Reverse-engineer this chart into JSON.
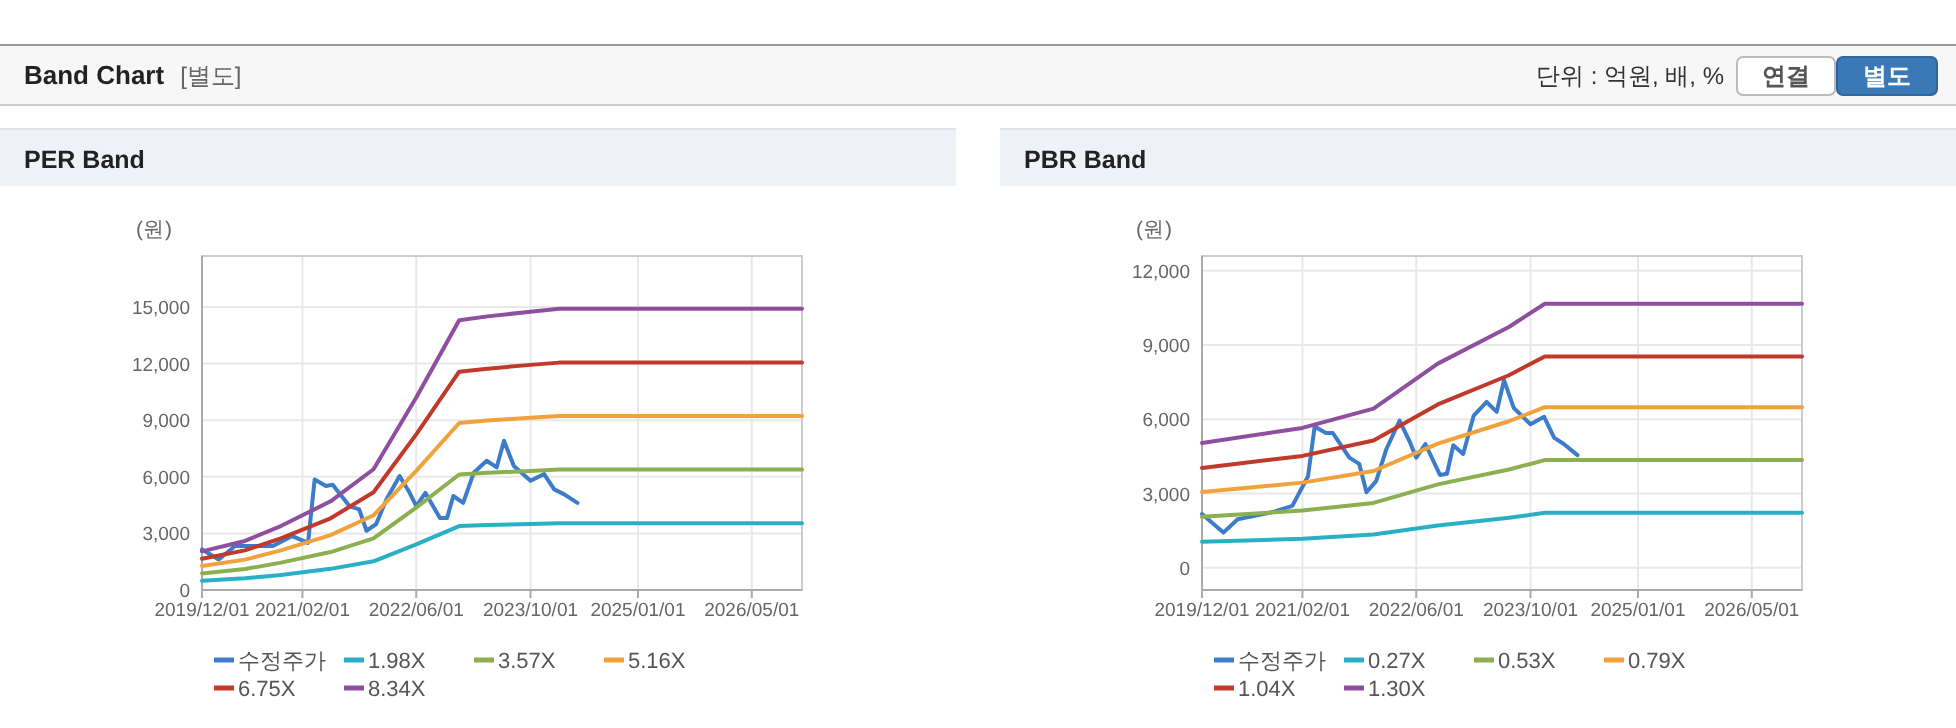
{
  "chart_data": [
    {
      "type": "other",
      "title": "Band Chart",
      "annotations": [
        "[별도]",
        "단위 : 억원, 배, %",
        "연결",
        "별도"
      ]
    },
    {
      "type": "line",
      "title": "PER Band",
      "ylabel": "(원)",
      "xlim": [
        "2019-12-01",
        "2026-12-01"
      ],
      "xticks": [
        {
          "value": "2019-12-01",
          "label": "2019/12/01"
        },
        {
          "value": "2021-02-01",
          "label": "2021/02/01"
        },
        {
          "value": "2022-06-01",
          "label": "2022/06/01"
        },
        {
          "value": "2023-10-01",
          "label": "2023/10/01"
        },
        {
          "value": "2025-01-01",
          "label": "2025/01/01"
        },
        {
          "value": "2026-05-01",
          "label": "2026/05/01"
        }
      ],
      "ylim": [
        0,
        17700
      ],
      "yticks": [
        {
          "value": 0,
          "label": "0"
        },
        {
          "value": 3000,
          "label": "3,000"
        },
        {
          "value": 6000,
          "label": "6,000"
        },
        {
          "value": 9000,
          "label": "9,000"
        },
        {
          "value": 12000,
          "label": "12,000"
        },
        {
          "value": 15000,
          "label": "15,000"
        }
      ],
      "grid": true,
      "legend": "bottom",
      "series": [
        {
          "name": "수정주가",
          "color": "#3d7cc9",
          "x": [
            "2019-12-01",
            "2020-02-10",
            "2020-04-20",
            "2020-09-28",
            "2020-12-20",
            "2021-02-25",
            "2021-03-25",
            "2021-05-12",
            "2021-06-10",
            "2021-08-20",
            "2021-10-01",
            "2021-11-01",
            "2021-12-12",
            "2022-01-25",
            "2022-03-22",
            "2022-05-04",
            "2022-06-01",
            "2022-07-10",
            "2022-09-10",
            "2022-10-10",
            "2022-11-06",
            "2022-12-18",
            "2023-02-01",
            "2023-03-28",
            "2023-05-10",
            "2023-06-10",
            "2023-07-22",
            "2023-10-01",
            "2023-11-28",
            "2024-01-10",
            "2024-02-20",
            "2024-04-18"
          ],
          "values": [
            2150,
            1620,
            2330,
            2330,
            2860,
            2500,
            5860,
            5510,
            5580,
            4450,
            4270,
            3140,
            3490,
            4800,
            6040,
            5150,
            4450,
            5150,
            3810,
            3810,
            4980,
            4620,
            6210,
            6850,
            6500,
            7910,
            6570,
            5790,
            6140,
            5330,
            5080,
            4620
          ]
        },
        {
          "name": "1.98X",
          "color": "#2ab0c5",
          "x": [
            "2019-12-01",
            "2020-06-01",
            "2020-11-01",
            "2021-06-01",
            "2021-12-01",
            "2022-06-01",
            "2022-12-01",
            "2023-04-01",
            "2023-10-01",
            "2024-02-01",
            "2026-12-01"
          ],
          "values": [
            490,
            620,
            800,
            1120,
            1520,
            2420,
            3390,
            3440,
            3500,
            3540,
            3540
          ]
        },
        {
          "name": "3.57X",
          "color": "#8cb050",
          "x": [
            "2019-12-01",
            "2020-06-01",
            "2020-11-01",
            "2021-06-01",
            "2021-12-01",
            "2022-06-01",
            "2022-12-01",
            "2023-04-01",
            "2023-10-01",
            "2024-02-01",
            "2026-12-01"
          ],
          "values": [
            880,
            1110,
            1450,
            2010,
            2740,
            4370,
            6120,
            6210,
            6310,
            6380,
            6380
          ]
        },
        {
          "name": "5.16X",
          "color": "#f2a23c",
          "x": [
            "2019-12-01",
            "2020-06-01",
            "2020-11-01",
            "2021-06-01",
            "2021-12-01",
            "2022-06-01",
            "2022-12-01",
            "2023-04-01",
            "2023-10-01",
            "2024-02-01",
            "2026-12-01"
          ],
          "values": [
            1270,
            1610,
            2100,
            2910,
            3960,
            6310,
            8850,
            8980,
            9130,
            9220,
            9220
          ]
        },
        {
          "name": "6.75X",
          "color": "#c0392b",
          "x": [
            "2019-12-01",
            "2020-06-01",
            "2020-11-01",
            "2021-06-01",
            "2021-12-01",
            "2022-06-01",
            "2022-12-01",
            "2023-04-01",
            "2023-10-01",
            "2024-02-01",
            "2026-12-01"
          ],
          "values": [
            1660,
            2100,
            2740,
            3800,
            5180,
            8250,
            11570,
            11730,
            11930,
            12050,
            12050
          ]
        },
        {
          "name": "8.34X",
          "color": "#8e4f9e",
          "x": [
            "2019-12-01",
            "2020-06-01",
            "2020-11-01",
            "2021-06-01",
            "2021-12-01",
            "2022-06-01",
            "2022-12-01",
            "2023-04-01",
            "2023-10-01",
            "2024-02-01",
            "2026-12-01"
          ],
          "values": [
            2050,
            2600,
            3390,
            4700,
            6400,
            10200,
            14300,
            14500,
            14750,
            14900,
            14900
          ]
        }
      ]
    },
    {
      "type": "line",
      "title": "PBR Band",
      "ylabel": "(원)",
      "xlim": [
        "2019-12-01",
        "2026-12-01"
      ],
      "xticks": [
        {
          "value": "2019-12-01",
          "label": "2019/12/01"
        },
        {
          "value": "2021-02-01",
          "label": "2021/02/01"
        },
        {
          "value": "2022-06-01",
          "label": "2022/06/01"
        },
        {
          "value": "2023-10-01",
          "label": "2023/10/01"
        },
        {
          "value": "2025-01-01",
          "label": "2025/01/01"
        },
        {
          "value": "2026-05-01",
          "label": "2026/05/01"
        }
      ],
      "ylim": [
        -900,
        12600
      ],
      "yticks": [
        {
          "value": 0,
          "label": "0"
        },
        {
          "value": 3000,
          "label": "3,000"
        },
        {
          "value": 6000,
          "label": "6,000"
        },
        {
          "value": 9000,
          "label": "9,000"
        },
        {
          "value": 12000,
          "label": "12,000"
        }
      ],
      "grid": true,
      "legend": "bottom",
      "series": [
        {
          "name": "수정주가",
          "color": "#3d7cc9",
          "x": [
            "2019-12-01",
            "2020-03-01",
            "2020-05-01",
            "2020-09-28",
            "2020-12-20",
            "2021-02-25",
            "2021-03-25",
            "2021-05-12",
            "2021-06-10",
            "2021-08-20",
            "2021-10-01",
            "2021-11-01",
            "2021-12-12",
            "2022-01-25",
            "2022-03-22",
            "2022-05-04",
            "2022-06-01",
            "2022-07-10",
            "2022-09-10",
            "2022-10-10",
            "2022-11-06",
            "2022-12-18",
            "2023-02-01",
            "2023-03-28",
            "2023-05-10",
            "2023-06-10",
            "2023-07-22",
            "2023-10-01",
            "2023-11-28",
            "2024-01-10",
            "2024-02-20",
            "2024-04-18"
          ],
          "values": [
            2170,
            1420,
            1960,
            2250,
            2500,
            3700,
            5710,
            5450,
            5450,
            4450,
            4200,
            3050,
            3500,
            4800,
            5950,
            5100,
            4450,
            5000,
            3750,
            3800,
            4950,
            4600,
            6150,
            6700,
            6300,
            7580,
            6450,
            5800,
            6100,
            5250,
            5000,
            4550
          ]
        },
        {
          "name": "0.27X",
          "color": "#2ab0c5",
          "x": [
            "2019-12-01",
            "2021-02-01",
            "2021-12-01",
            "2022-09-01",
            "2023-07-01",
            "2023-12-01",
            "2026-12-01"
          ],
          "values": [
            1050,
            1170,
            1340,
            1710,
            2020,
            2220,
            2220
          ]
        },
        {
          "name": "0.53X",
          "color": "#8cb050",
          "x": [
            "2019-12-01",
            "2021-02-01",
            "2021-12-01",
            "2022-09-01",
            "2023-07-01",
            "2023-12-01",
            "2026-12-01"
          ],
          "values": [
            2060,
            2310,
            2620,
            3370,
            3970,
            4350,
            4350
          ]
        },
        {
          "name": "0.79X",
          "color": "#f2a23c",
          "x": [
            "2019-12-01",
            "2021-02-01",
            "2021-12-01",
            "2022-09-01",
            "2023-07-01",
            "2023-12-01",
            "2026-12-01"
          ],
          "values": [
            3060,
            3440,
            3910,
            5020,
            5920,
            6490,
            6490
          ]
        },
        {
          "name": "1.04X",
          "color": "#c0392b",
          "x": [
            "2019-12-01",
            "2021-02-01",
            "2021-12-01",
            "2022-09-01",
            "2023-07-01",
            "2023-12-01",
            "2026-12-01"
          ],
          "values": [
            4030,
            4520,
            5140,
            6600,
            7780,
            8540,
            8540
          ]
        },
        {
          "name": "1.30X",
          "color": "#8e4f9e",
          "x": [
            "2019-12-01",
            "2021-02-01",
            "2021-12-01",
            "2022-09-01",
            "2023-07-01",
            "2023-12-01",
            "2026-12-01"
          ],
          "values": [
            5040,
            5650,
            6430,
            8250,
            9730,
            10670,
            10670
          ]
        }
      ]
    }
  ]
}
